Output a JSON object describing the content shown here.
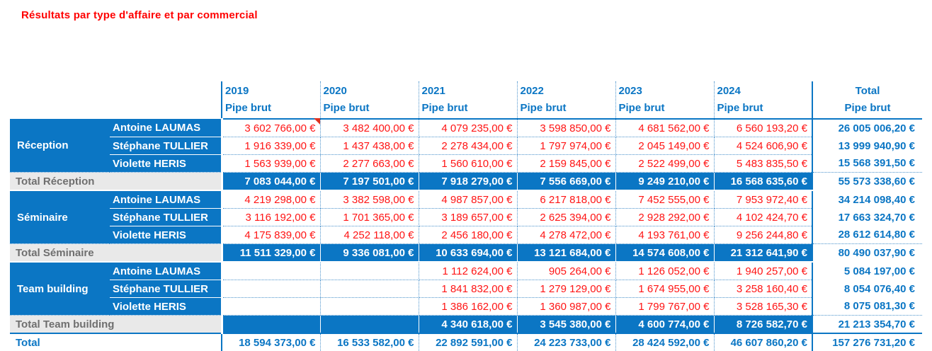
{
  "title": "Résultats par type d'affaire et par commercial",
  "columns": {
    "years": [
      "2019",
      "2020",
      "2021",
      "2022",
      "2023",
      "2024"
    ],
    "measure_label": "Pipe brut",
    "total_label": "Total"
  },
  "groups": [
    {
      "name": "Réception",
      "rows": [
        {
          "name": "Antoine LAUMAS",
          "values": [
            "3 602 766,00 €",
            "3 482 400,00 €",
            "4 079 235,00 €",
            "3 598 850,00 €",
            "4 681 562,00 €",
            "6 560 193,20 €"
          ],
          "total": "26 005 006,20 €",
          "has_comment": true
        },
        {
          "name": "Stéphane TULLIER",
          "values": [
            "1 916 339,00 €",
            "1 437 438,00 €",
            "2 278 434,00 €",
            "1 797 974,00 €",
            "2 045 149,00 €",
            "4 524 606,90 €"
          ],
          "total": "13 999 940,90 €",
          "has_comment": false
        },
        {
          "name": "Violette HERIS",
          "values": [
            "1 563 939,00 €",
            "2 277 663,00 €",
            "1 560 610,00 €",
            "2 159 845,00 €",
            "2 522 499,00 €",
            "5 483 835,50 €"
          ],
          "total": "15 568 391,50 €",
          "has_comment": false
        }
      ],
      "total_row": {
        "label": "Total Réception",
        "values": [
          "7 083 044,00 €",
          "7 197 501,00 €",
          "7 918 279,00 €",
          "7 556 669,00 €",
          "9 249 210,00 €",
          "16 568 635,60 €"
        ],
        "total": "55 573 338,60 €"
      }
    },
    {
      "name": "Séminaire",
      "rows": [
        {
          "name": "Antoine LAUMAS",
          "values": [
            "4 219 298,00 €",
            "3 382 598,00 €",
            "4 987 857,00 €",
            "6 217 818,00 €",
            "7 452 555,00 €",
            "7 953 972,40 €"
          ],
          "total": "34 214 098,40 €",
          "has_comment": false
        },
        {
          "name": "Stéphane TULLIER",
          "values": [
            "3 116 192,00 €",
            "1 701 365,00 €",
            "3 189 657,00 €",
            "2 625 394,00 €",
            "2 928 292,00 €",
            "4 102 424,70 €"
          ],
          "total": "17 663 324,70 €",
          "has_comment": false
        },
        {
          "name": "Violette HERIS",
          "values": [
            "4 175 839,00 €",
            "4 252 118,00 €",
            "2 456 180,00 €",
            "4 278 472,00 €",
            "4 193 761,00 €",
            "9 256 244,80 €"
          ],
          "total": "28 612 614,80 €",
          "has_comment": false
        }
      ],
      "total_row": {
        "label": "Total Séminaire",
        "values": [
          "11 511 329,00 €",
          "9 336 081,00 €",
          "10 633 694,00 €",
          "13 121 684,00 €",
          "14 574 608,00 €",
          "21 312 641,90 €"
        ],
        "total": "80 490 037,90 €"
      }
    },
    {
      "name": "Team building",
      "rows": [
        {
          "name": "Antoine LAUMAS",
          "values": [
            "",
            "",
            "1 112 624,00 €",
            "905 264,00 €",
            "1 126 052,00 €",
            "1 940 257,00 €"
          ],
          "total": "5 084 197,00 €",
          "has_comment": false
        },
        {
          "name": "Stéphane TULLIER",
          "values": [
            "",
            "",
            "1 841 832,00 €",
            "1 279 129,00 €",
            "1 674 955,00 €",
            "3 258 160,40 €"
          ],
          "total": "8 054 076,40 €",
          "has_comment": false
        },
        {
          "name": "Violette HERIS",
          "values": [
            "",
            "",
            "1 386 162,00 €",
            "1 360 987,00 €",
            "1 799 767,00 €",
            "3 528 165,30 €"
          ],
          "total": "8 075 081,30 €",
          "has_comment": false
        }
      ],
      "total_row": {
        "label": "Total Team building",
        "values": [
          "",
          "",
          "4 340 618,00 €",
          "3 545 380,00 €",
          "4 600 774,00 €",
          "8 726 582,70 €"
        ],
        "total": "21 213 354,70 €"
      }
    }
  ],
  "grand_total": {
    "label": "Total",
    "values": [
      "18 594 373,00 €",
      "16 533 582,00 €",
      "22 892 591,00 €",
      "24 223 733,00 €",
      "28 424 592,00 €",
      "46 607 860,20 €"
    ],
    "total": "157 276 731,20 €"
  },
  "colors": {
    "accent_blue": "#0b76c4",
    "value_red": "#ff1414",
    "title_red": "#ff0000",
    "total_label_grey_bg": "#e9e9e9",
    "total_label_grey_text": "#6f6f6f",
    "comment_marker_red": "#e0301e",
    "dotted_grid_blue": "#4c93cc"
  }
}
